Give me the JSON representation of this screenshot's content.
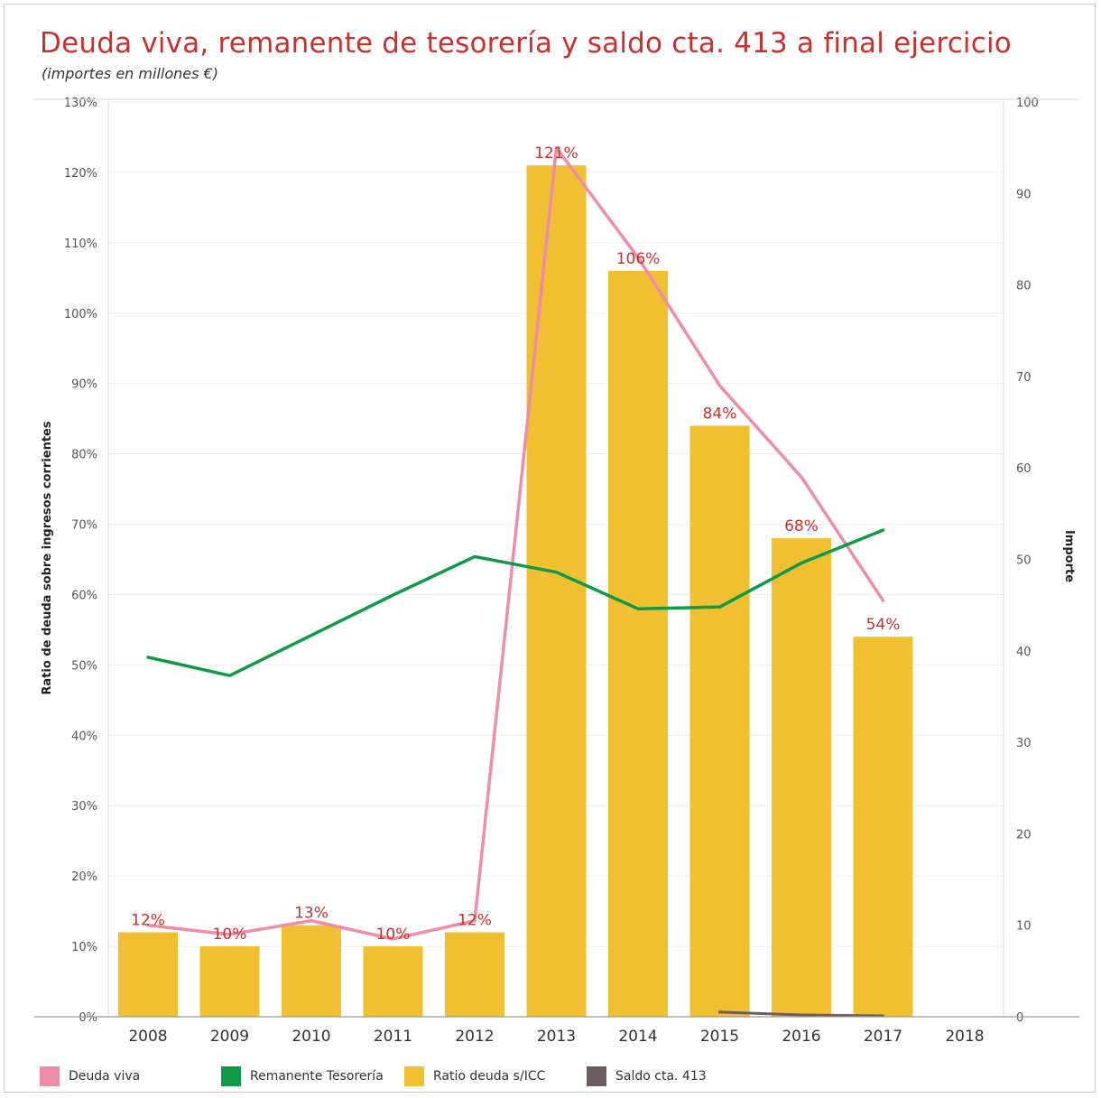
{
  "title": "Deuda viva, remanente de tesorería y saldo cta. 413  a final ejercicio",
  "subtitle": "(importes en millones €)",
  "chart_data": {
    "type": "bar",
    "categories": [
      "2008",
      "2009",
      "2010",
      "2011",
      "2012",
      "2013",
      "2014",
      "2015",
      "2016",
      "2017",
      "2018"
    ],
    "left_axis": {
      "label": "Ratio de deuda sobre ingresos corrientes",
      "ylim": [
        0,
        130
      ],
      "ticks": [
        "0%",
        "10%",
        "20%",
        "30%",
        "40%",
        "50%",
        "60%",
        "70%",
        "80%",
        "90%",
        "100%",
        "110%",
        "120%",
        "130%"
      ]
    },
    "right_axis": {
      "label": "Importe",
      "ylim": [
        0,
        100
      ],
      "ticks": [
        "0",
        "10",
        "20",
        "30",
        "40",
        "50",
        "60",
        "70",
        "80",
        "90",
        "100"
      ]
    },
    "bars": {
      "name": "Ratio deuda s/ICC",
      "color": "#f0bf32",
      "axis": "left",
      "values": [
        12,
        10,
        13,
        10,
        12,
        121,
        106,
        84,
        68,
        54,
        null
      ],
      "labels": [
        "12%",
        "10%",
        "13%",
        "10%",
        "12%",
        "121%",
        "106%",
        "84%",
        "68%",
        "54%",
        ""
      ]
    },
    "lines": [
      {
        "name": "Deuda viva",
        "color": "#ee8da6",
        "axis": "right",
        "values": [
          10,
          9,
          10.5,
          8.5,
          10.5,
          95,
          83,
          69,
          59,
          45.5,
          null
        ]
      },
      {
        "name": "Remanente Tesorería",
        "color": "#0f9a48",
        "axis": "right",
        "values": [
          39.3,
          37.3,
          41.7,
          46.1,
          50.3,
          48.6,
          44.6,
          44.8,
          49.6,
          53.2,
          null
        ]
      },
      {
        "name": "Saldo cta. 413",
        "color": "#6e5d5e",
        "axis": "right",
        "values": [
          null,
          null,
          null,
          null,
          null,
          null,
          null,
          0.5,
          0.2,
          0.1,
          null
        ]
      }
    ],
    "legend": [
      {
        "name": "Deuda viva",
        "color": "#ee8da6"
      },
      {
        "name": "Remanente Tesorería",
        "color": "#0f9a48"
      },
      {
        "name": "Ratio deuda s/ICC",
        "color": "#f0bf32"
      },
      {
        "name": "Saldo cta. 413",
        "color": "#6e5d5e"
      }
    ],
    "legend_placement": "bottom",
    "grid": true
  }
}
